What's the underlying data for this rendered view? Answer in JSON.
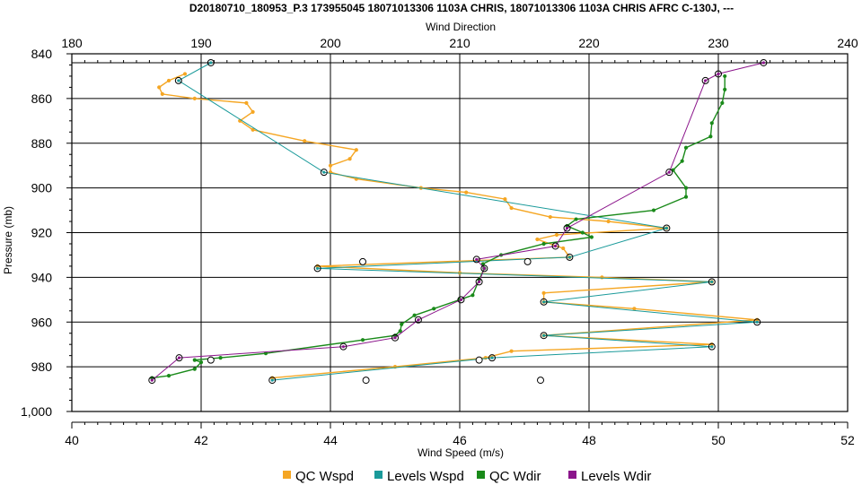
{
  "chart_data": {
    "type": "line",
    "title": "D20180710_180953_P.3 173955045 18071013306 1103A CHRIS, 18071013306 1103A CHRIS AFRC C-130J, ---",
    "top_axis": {
      "label": "Wind Direction",
      "range": [
        180,
        240
      ],
      "ticks": [
        "180",
        "190",
        "200",
        "210",
        "220",
        "230",
        "240"
      ]
    },
    "bottom_axis": {
      "label": "Wind Speed (m/s)",
      "range": [
        40,
        52
      ],
      "ticks": [
        "40",
        "42",
        "44",
        "46",
        "48",
        "50",
        "52"
      ]
    },
    "left_axis": {
      "label": "Pressure (mb)",
      "range": [
        840,
        1000
      ],
      "inverted": true,
      "ticks": [
        "840",
        "860",
        "880",
        "900",
        "920",
        "940",
        "960",
        "980",
        "1,000"
      ]
    },
    "grid": true,
    "legend_position": "bottom",
    "series": [
      {
        "name": "QC Wspd",
        "color": "#f5a623",
        "axis": "bottom",
        "points": [
          [
            41.75,
            849
          ],
          [
            41.5,
            852
          ],
          [
            41.35,
            855
          ],
          [
            41.4,
            858
          ],
          [
            41.9,
            860
          ],
          [
            42.7,
            862
          ],
          [
            42.8,
            866
          ],
          [
            42.6,
            870
          ],
          [
            42.8,
            874
          ],
          [
            43.6,
            879
          ],
          [
            44.4,
            883
          ],
          [
            44.3,
            887
          ],
          [
            44.0,
            890
          ],
          [
            44.0,
            893
          ],
          [
            44.4,
            896
          ],
          [
            45.4,
            900
          ],
          [
            46.1,
            902
          ],
          [
            46.7,
            905
          ],
          [
            46.8,
            909
          ],
          [
            47.4,
            913
          ],
          [
            48.3,
            915
          ],
          [
            49.2,
            918
          ],
          [
            47.5,
            921
          ],
          [
            47.2,
            923
          ],
          [
            47.6,
            927
          ],
          [
            47.7,
            931
          ],
          [
            43.8,
            935
          ],
          [
            46.0,
            938
          ],
          [
            48.2,
            940
          ],
          [
            49.9,
            942
          ],
          [
            47.3,
            947
          ],
          [
            47.3,
            951
          ],
          [
            48.7,
            954
          ],
          [
            50.6,
            959
          ],
          [
            47.3,
            966
          ],
          [
            49.9,
            970
          ],
          [
            46.8,
            973
          ],
          [
            46.4,
            976
          ],
          [
            45.0,
            980
          ],
          [
            43.1,
            985
          ]
        ]
      },
      {
        "name": "Levels Wspd",
        "color": "#1a9a9a",
        "axis": "bottom",
        "points": [
          [
            42.15,
            844
          ],
          [
            41.65,
            852
          ],
          [
            43.9,
            893
          ],
          [
            49.2,
            918
          ],
          [
            47.7,
            931
          ],
          [
            43.8,
            936
          ],
          [
            49.9,
            942
          ],
          [
            47.3,
            951
          ],
          [
            50.6,
            960
          ],
          [
            47.3,
            966
          ],
          [
            49.9,
            971
          ],
          [
            46.5,
            976
          ],
          [
            43.1,
            986
          ]
        ]
      },
      {
        "name": "QC Wdir",
        "color": "#1a8a1a",
        "axis": "top",
        "points": [
          [
            230.5,
            850
          ],
          [
            230.5,
            856
          ],
          [
            230.3,
            862
          ],
          [
            229.5,
            871
          ],
          [
            229.4,
            877
          ],
          [
            227.5,
            882
          ],
          [
            227.2,
            888
          ],
          [
            226.5,
            892
          ],
          [
            227.5,
            900
          ],
          [
            227.5,
            904
          ],
          [
            225.0,
            910
          ],
          [
            219.0,
            914
          ],
          [
            218.3,
            917
          ],
          [
            219.5,
            920
          ],
          [
            220.2,
            922
          ],
          [
            216.5,
            925
          ],
          [
            213.2,
            930
          ],
          [
            211.8,
            934
          ],
          [
            211.9,
            936
          ],
          [
            211.5,
            941
          ],
          [
            211.0,
            948
          ],
          [
            210.0,
            950
          ],
          [
            208.0,
            954
          ],
          [
            206.5,
            957
          ],
          [
            205.5,
            961
          ],
          [
            205.4,
            964
          ],
          [
            205.0,
            966
          ],
          [
            202.5,
            968
          ],
          [
            195.0,
            974
          ],
          [
            191.5,
            976
          ],
          [
            189.5,
            977
          ],
          [
            190.0,
            978
          ],
          [
            189.5,
            981
          ],
          [
            187.5,
            984
          ],
          [
            186.2,
            985
          ]
        ]
      },
      {
        "name": "Levels Wdir",
        "color": "#8b158b",
        "axis": "top",
        "points": [
          [
            233.5,
            844
          ],
          [
            230.0,
            849
          ],
          [
            229.0,
            852
          ],
          [
            226.2,
            893
          ],
          [
            218.3,
            918
          ],
          [
            217.4,
            926
          ],
          [
            211.3,
            932
          ],
          [
            211.9,
            936
          ],
          [
            211.5,
            942
          ],
          [
            210.1,
            950
          ],
          [
            206.8,
            959
          ],
          [
            205.0,
            967
          ],
          [
            201.0,
            971
          ],
          [
            188.3,
            976
          ],
          [
            186.2,
            986
          ]
        ]
      }
    ],
    "unmatched_markers": [
      {
        "axis": "bottom",
        "points": [
          [
            44.5,
            933
          ],
          [
            47.05,
            933
          ],
          [
            42.15,
            977
          ],
          [
            46.3,
            977
          ],
          [
            44.55,
            986
          ],
          [
            47.25,
            986
          ]
        ]
      }
    ]
  }
}
